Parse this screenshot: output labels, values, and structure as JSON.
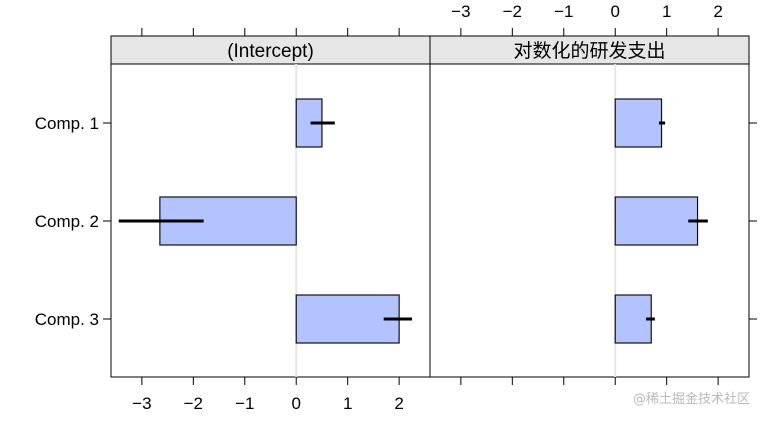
{
  "chart_data": {
    "type": "bar",
    "orientation": "horizontal",
    "categories": [
      "Comp. 1",
      "Comp. 2",
      "Comp. 3"
    ],
    "xlim": [
      -3.6,
      2.6
    ],
    "x_ticks": [
      -3,
      -2,
      -1,
      0,
      1,
      2
    ],
    "x_tick_labels": [
      "−3",
      "−2",
      "−1",
      "0",
      "1",
      "2"
    ],
    "grid": false,
    "panels": [
      {
        "title": "(Intercept)",
        "values": [
          0.5,
          -2.65,
          2.0
        ],
        "intervals": [
          [
            0.28,
            0.75
          ],
          [
            -3.45,
            -1.8
          ],
          [
            1.7,
            2.25
          ]
        ]
      },
      {
        "title": "对数化的研发支出",
        "values": [
          0.9,
          1.6,
          0.7
        ],
        "intervals": [
          [
            0.85,
            0.97
          ],
          [
            1.42,
            1.8
          ],
          [
            0.6,
            0.77
          ]
        ]
      }
    ],
    "colors": {
      "bar_fill": "#b3c3ff",
      "bar_stroke": "#111111",
      "interval": "#000000",
      "strip": "#e6e6e6",
      "reference_line": "#e6e6e6"
    }
  },
  "watermark": "@稀土掘金技术社区"
}
